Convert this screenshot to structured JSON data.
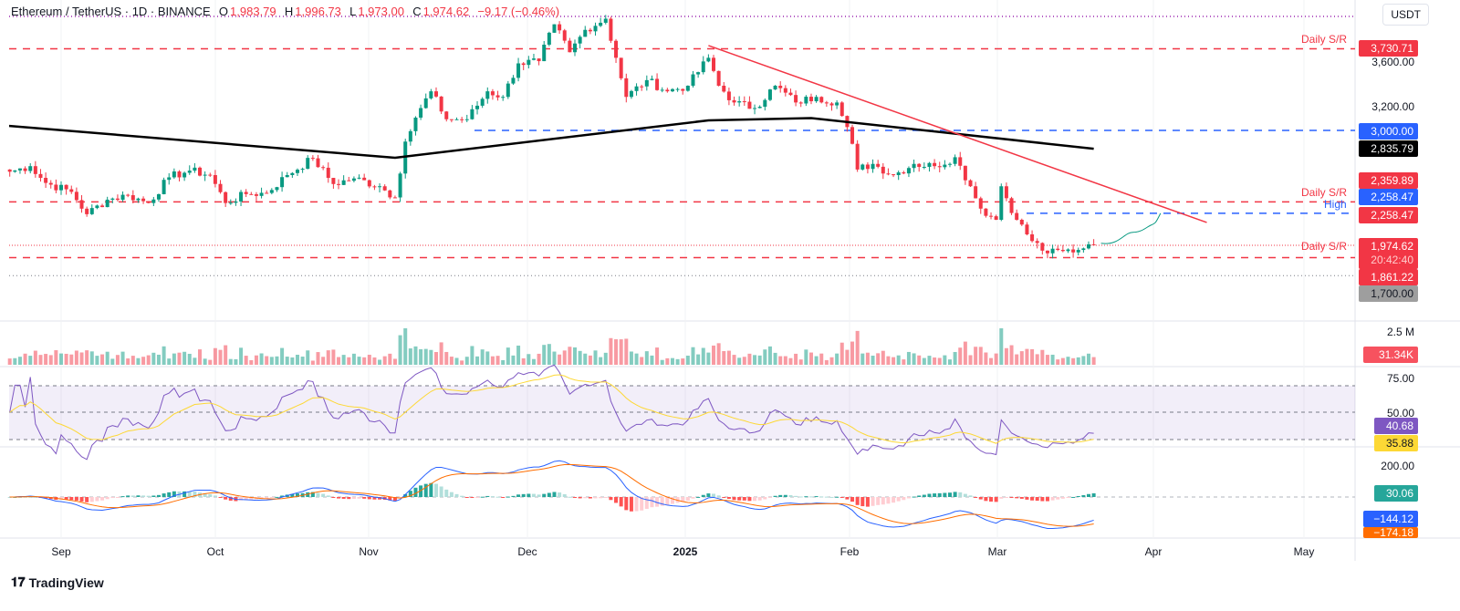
{
  "header": {
    "symbol": "Ethereum / TetherUS · 1D · BINANCE",
    "o_label": "O",
    "o": "1,983.79",
    "h_label": "H",
    "h": "1,996.73",
    "l_label": "L",
    "l": "1,973.00",
    "c_label": "C",
    "c": "1,974.62",
    "change": "−9.17 (−0.46%)"
  },
  "currency": "USDT",
  "logo": "TradingView",
  "price_axis": {
    "ticks": [
      "3,600.00",
      "3,200.00"
    ]
  },
  "price_labels": {
    "sr_top": "3,730.71",
    "blue_3000": "3,000.00",
    "sma": "2,835.79",
    "sr_2359": "2,359.89",
    "high_blue": "2,258.47",
    "high_red": "2,258.47",
    "last": "1,974.62",
    "countdown": "20:42:40",
    "sr_1861": "1,861.22",
    "low_gray": "1,700.00"
  },
  "annotations": {
    "daily_sr_1": "Daily S/R",
    "daily_sr_2": "Daily S/R",
    "high": "High",
    "daily_sr_3": "Daily S/R"
  },
  "volume": {
    "tick": "2.5 M",
    "last": "31.34K"
  },
  "rsi": {
    "ticks": [
      "75.00",
      "50.00"
    ],
    "rsi": "40.68",
    "ma": "35.88"
  },
  "macd": {
    "tick": "200.00",
    "hist": "30.06",
    "macd": "−144.12",
    "signal": "−174.18"
  },
  "time_axis": [
    "Sep",
    "Oct",
    "Nov",
    "Dec",
    "2025",
    "Feb",
    "Mar",
    "Apr",
    "May"
  ],
  "colors": {
    "up": "#089981",
    "down": "#f23645",
    "sr": "#f23645",
    "blue": "#2962ff",
    "sma": "#000000",
    "rsi": "#7e57c2",
    "rsi_ma": "#fdd835",
    "macd": "#2962ff",
    "signal": "#ff6d00"
  },
  "chart_data": {
    "type": "candlestick",
    "title": "Ethereum / TetherUS · 1D · BINANCE",
    "ylim": [
      1600,
      4100
    ],
    "approx_closes": [
      [
        "2024-08-22",
        2630
      ],
      [
        "2024-08-26",
        2680
      ],
      [
        "2024-08-29",
        2530
      ],
      [
        "2024-09-03",
        2450
      ],
      [
        "2024-09-06",
        2250
      ],
      [
        "2024-09-10",
        2380
      ],
      [
        "2024-09-14",
        2420
      ],
      [
        "2024-09-18",
        2350
      ],
      [
        "2024-09-22",
        2580
      ],
      [
        "2024-09-26",
        2640
      ],
      [
        "2024-09-30",
        2600
      ],
      [
        "2024-10-03",
        2350
      ],
      [
        "2024-10-07",
        2430
      ],
      [
        "2024-10-11",
        2440
      ],
      [
        "2024-10-15",
        2600
      ],
      [
        "2024-10-20",
        2750
      ],
      [
        "2024-10-24",
        2520
      ],
      [
        "2024-10-28",
        2570
      ],
      [
        "2024-11-02",
        2500
      ],
      [
        "2024-11-05",
        2400
      ],
      [
        "2024-11-07",
        2900
      ],
      [
        "2024-11-10",
        3200
      ],
      [
        "2024-11-12",
        3350
      ],
      [
        "2024-11-15",
        3100
      ],
      [
        "2024-11-19",
        3100
      ],
      [
        "2024-11-23",
        3350
      ],
      [
        "2024-11-26",
        3300
      ],
      [
        "2024-11-29",
        3600
      ],
      [
        "2024-12-03",
        3620
      ],
      [
        "2024-12-06",
        3950
      ],
      [
        "2024-12-09",
        3700
      ],
      [
        "2024-12-12",
        3900
      ],
      [
        "2024-12-16",
        4000
      ],
      [
        "2024-12-18",
        3650
      ],
      [
        "2024-12-20",
        3300
      ],
      [
        "2024-12-24",
        3450
      ],
      [
        "2024-12-28",
        3350
      ],
      [
        "2025-01-01",
        3400
      ],
      [
        "2025-01-05",
        3650
      ],
      [
        "2025-01-07",
        3400
      ],
      [
        "2025-01-10",
        3250
      ],
      [
        "2025-01-14",
        3200
      ],
      [
        "2025-01-18",
        3400
      ],
      [
        "2025-01-22",
        3250
      ],
      [
        "2025-01-26",
        3300
      ],
      [
        "2025-01-30",
        3250
      ],
      [
        "2025-02-02",
        2880
      ],
      [
        "2025-02-03",
        2650
      ],
      [
        "2025-02-06",
        2700
      ],
      [
        "2025-02-10",
        2600
      ],
      [
        "2025-02-14",
        2700
      ],
      [
        "2025-02-18",
        2680
      ],
      [
        "2025-02-22",
        2760
      ],
      [
        "2025-02-25",
        2500
      ],
      [
        "2025-02-27",
        2300
      ],
      [
        "2025-03-02",
        2200
      ],
      [
        "2025-03-03",
        2500
      ],
      [
        "2025-03-06",
        2200
      ],
      [
        "2025-03-09",
        2010
      ],
      [
        "2025-03-12",
        1900
      ],
      [
        "2025-03-15",
        1920
      ],
      [
        "2025-03-18",
        1930
      ],
      [
        "2025-03-20",
        1980
      ],
      [
        "2025-03-21",
        1974.62
      ]
    ],
    "sma200_approx": [
      [
        "2024-08-22",
        3040
      ],
      [
        "2024-11-05",
        2755
      ],
      [
        "2025-01-05",
        3090
      ],
      [
        "2025-01-25",
        3110
      ],
      [
        "2025-03-21",
        2835.79
      ]
    ],
    "horizontal_levels": [
      {
        "label": "Daily S/R",
        "value": 3730.71
      },
      {
        "value": 3000.0
      },
      {
        "label": "Daily S/R",
        "value": 2359.89
      },
      {
        "label": "High",
        "value": 2258.47
      },
      {
        "label": "Daily S/R",
        "value": 1861.22
      },
      {
        "value": 1700.0
      }
    ],
    "trendline": [
      [
        "2025-01-05",
        3760
      ],
      [
        "2025-04-12",
        2176
      ]
    ],
    "projection": [
      [
        "2025-03-21",
        1990
      ],
      [
        "2025-04-03",
        2258
      ]
    ]
  }
}
